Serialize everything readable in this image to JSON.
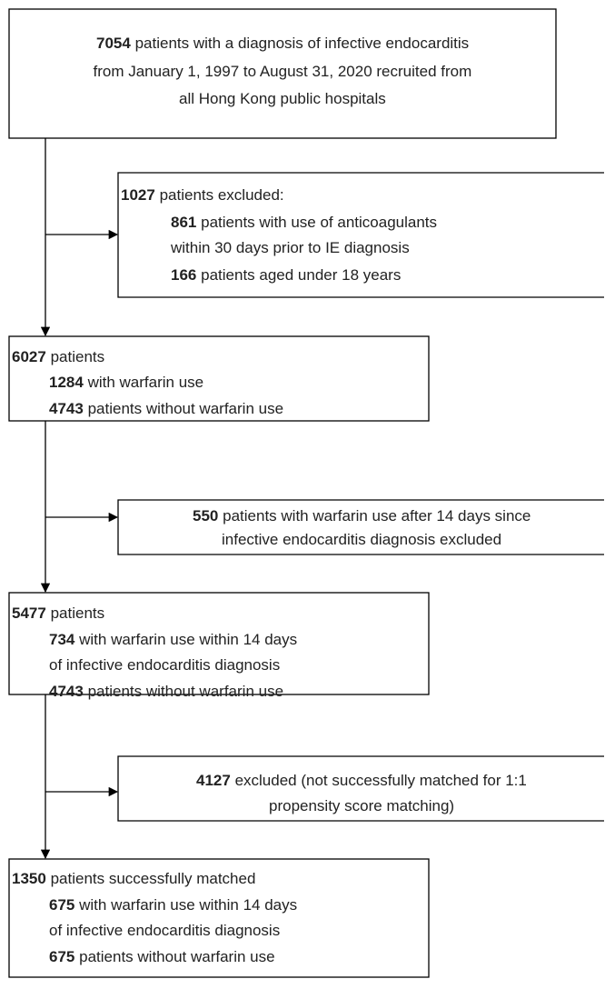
{
  "boxes": [
    {
      "lines": [
        {
          "count": 7054,
          "text": "patients with a diagnosis of infective endocarditis"
        },
        {
          "text": "from January 1, 1997 to August 31, 2020 recruited from"
        },
        {
          "text": "all Hong Kong public hospitals"
        }
      ]
    },
    {
      "lines": [
        {
          "count": 1027,
          "text": "patients excluded:"
        },
        {
          "count": 861,
          "text": "patients with use of anticoagulants"
        },
        {
          "text": "within 30 days prior to IE diagnosis"
        },
        {
          "count": 166,
          "text": "patients aged under 18 years"
        }
      ]
    },
    {
      "lines": [
        {
          "count": 6027,
          "text": "patients"
        },
        {
          "count": 1284,
          "text": "with warfarin use"
        },
        {
          "count": 4743,
          "text": "patients without warfarin use"
        }
      ]
    },
    {
      "lines": [
        {
          "count": 550,
          "text": "patients with warfarin use after 14 days since"
        },
        {
          "text": "infective endocarditis diagnosis excluded"
        }
      ]
    },
    {
      "lines": [
        {
          "count": 5477,
          "text": "patients"
        },
        {
          "count": 734,
          "text": "with warfarin use within 14 days"
        },
        {
          "text": "of infective endocarditis diagnosis"
        },
        {
          "count": 4743,
          "text": "patients without warfarin use"
        }
      ]
    },
    {
      "lines": [
        {
          "count": 4127,
          "text": "excluded (not successfully matched for 1:1"
        },
        {
          "text": "propensity score matching)"
        }
      ]
    },
    {
      "lines": [
        {
          "count": 1350,
          "text": "patients successfully matched"
        },
        {
          "count": 675,
          "text": "with warfarin use within 14 days"
        },
        {
          "text": "of infective endocarditis diagnosis"
        },
        {
          "count": 675,
          "text": "patients without warfarin use"
        }
      ]
    }
  ]
}
